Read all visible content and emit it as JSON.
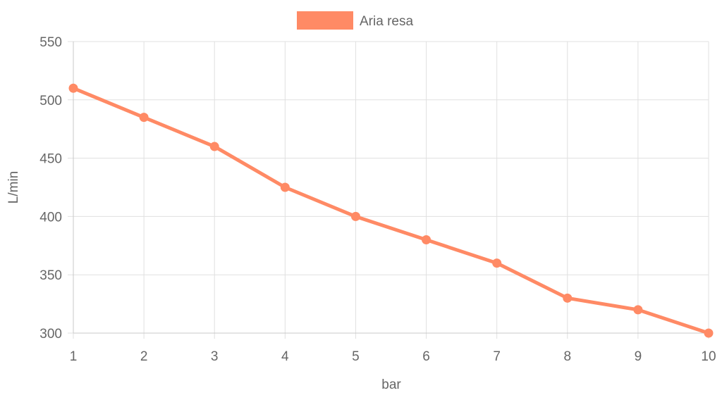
{
  "chart_data": {
    "type": "line",
    "title": "",
    "xlabel": "bar",
    "ylabel": "L/min",
    "x": [
      1,
      2,
      3,
      4,
      5,
      6,
      7,
      8,
      9,
      10
    ],
    "ylim": [
      300,
      550
    ],
    "y_ticks": [
      550,
      500,
      450,
      400,
      350,
      300
    ],
    "grid": true,
    "legend_position": "top-center",
    "series": [
      {
        "name": "Aria resa",
        "color": "#ff8a65",
        "values": [
          510,
          485,
          460,
          425,
          400,
          380,
          360,
          330,
          320,
          300
        ]
      }
    ]
  }
}
